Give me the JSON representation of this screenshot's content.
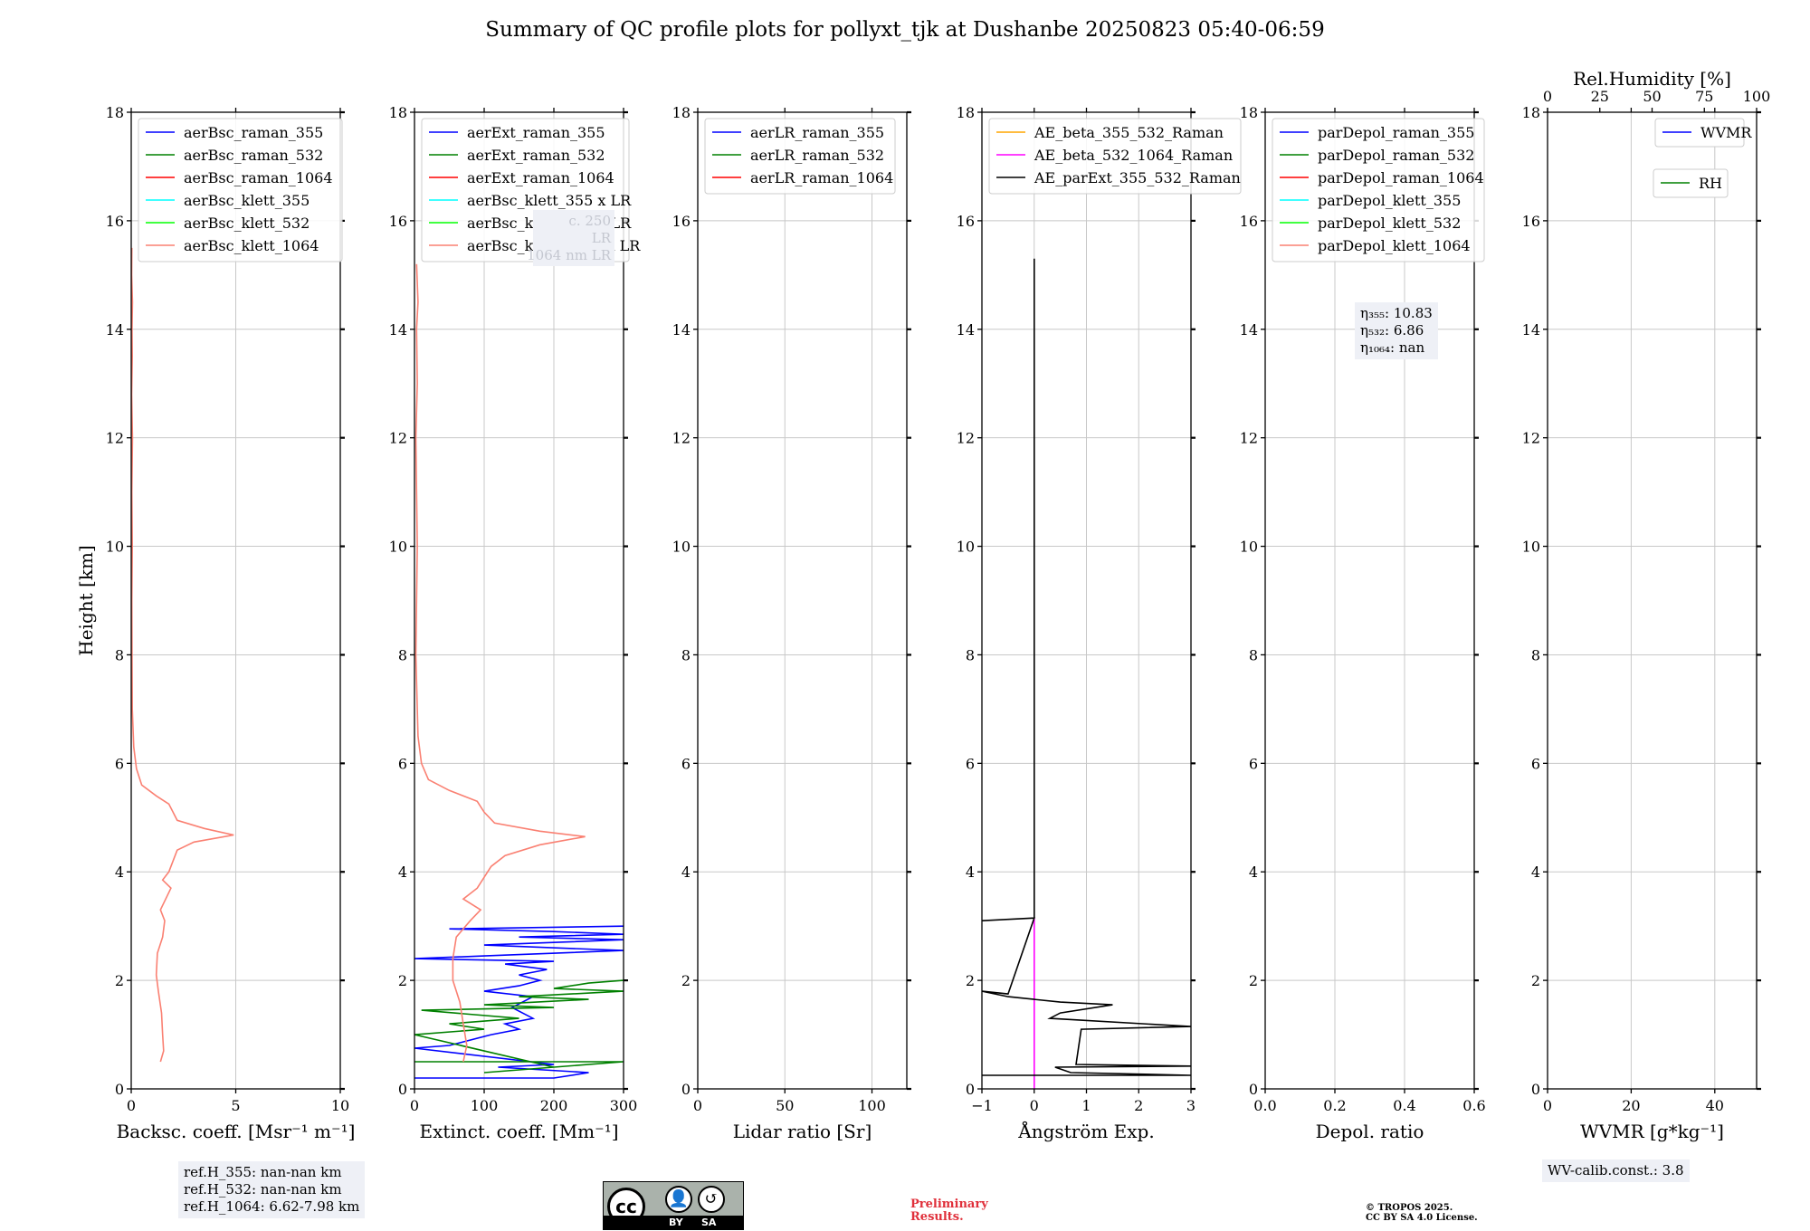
{
  "title": "Summary of QC profile plots for pollyxt_tjk at Dushanbe 20250823 05:40-06:59",
  "chart_data": [
    {
      "type": "line",
      "id": "bsc",
      "xlabel": "Backsc. coeff. [Msr⁻¹ m⁻¹]",
      "ylabel": "Height [km]",
      "xlim": [
        0,
        10
      ],
      "ylim": [
        0,
        18
      ],
      "xticks": [
        0,
        5,
        10
      ],
      "yticks": [
        0,
        2,
        4,
        6,
        8,
        10,
        12,
        14,
        16,
        18
      ],
      "grid": true,
      "legend_position": "top-left",
      "legend": [
        {
          "name": "aerBsc_raman_355",
          "color": "#0000ff"
        },
        {
          "name": "aerBsc_raman_532",
          "color": "#008000"
        },
        {
          "name": "aerBsc_raman_1064",
          "color": "#ff0000"
        },
        {
          "name": "aerBsc_klett_355",
          "color": "#00ffff"
        },
        {
          "name": "aerBsc_klett_532",
          "color": "#00ff00"
        },
        {
          "name": "aerBsc_klett_1064",
          "color": "#fa8072"
        }
      ],
      "series": [
        {
          "name": "aerBsc_klett_1064",
          "color": "#fa8072",
          "points": [
            [
              1.4,
              0.5
            ],
            [
              1.55,
              0.7
            ],
            [
              1.5,
              1.0
            ],
            [
              1.45,
              1.4
            ],
            [
              1.3,
              1.8
            ],
            [
              1.2,
              2.1
            ],
            [
              1.25,
              2.5
            ],
            [
              1.5,
              2.8
            ],
            [
              1.6,
              3.1
            ],
            [
              1.4,
              3.3
            ],
            [
              1.65,
              3.5
            ],
            [
              1.9,
              3.7
            ],
            [
              1.5,
              3.85
            ],
            [
              1.8,
              4.0
            ],
            [
              2.0,
              4.2
            ],
            [
              2.2,
              4.4
            ],
            [
              3.0,
              4.55
            ],
            [
              4.9,
              4.68
            ],
            [
              3.5,
              4.8
            ],
            [
              2.2,
              4.95
            ],
            [
              2.0,
              5.1
            ],
            [
              1.8,
              5.25
            ],
            [
              1.2,
              5.4
            ],
            [
              0.5,
              5.6
            ],
            [
              0.25,
              5.9
            ],
            [
              0.12,
              6.3
            ],
            [
              0.05,
              7.0
            ],
            [
              0.04,
              8.0
            ],
            [
              0.03,
              9.0
            ],
            [
              0.05,
              10.0
            ],
            [
              0.03,
              11.0
            ],
            [
              0.06,
              12.0
            ],
            [
              0.02,
              12.8
            ],
            [
              0.05,
              13.5
            ],
            [
              0.04,
              14.0
            ],
            [
              0.06,
              14.5
            ],
            [
              0.02,
              15.0
            ],
            [
              0.03,
              15.5
            ]
          ]
        }
      ]
    },
    {
      "type": "line",
      "id": "ext",
      "xlabel": "Extinct. coeff. [Mm⁻¹]",
      "ylabel": "",
      "xlim": [
        0,
        300
      ],
      "ylim": [
        0,
        18
      ],
      "xticks": [
        0,
        100,
        200,
        300
      ],
      "yticks": [
        0,
        2,
        4,
        6,
        8,
        10,
        12,
        14,
        16,
        18
      ],
      "grid": true,
      "legend_position": "top-left",
      "legend": [
        {
          "name": "aerExt_raman_355",
          "color": "#0000ff"
        },
        {
          "name": "aerExt_raman_532",
          "color": "#008000"
        },
        {
          "name": "aerExt_raman_1064",
          "color": "#ff0000"
        },
        {
          "name": "aerBsc_klett_355 x LR",
          "color": "#00ffff"
        },
        {
          "name": "aerBsc_klett_532 x LR",
          "color": "#00ff00"
        },
        {
          "name": "aerBsc_klett_1064 x LR",
          "color": "#fa8072"
        }
      ],
      "series": [
        {
          "name": "aerExt_raman_355",
          "color": "#0000ff",
          "points": [
            [
              0,
              0.2
            ],
            [
              200,
              0.2
            ],
            [
              250,
              0.3
            ],
            [
              120,
              0.4
            ],
            [
              200,
              0.45
            ],
            [
              0,
              0.75
            ],
            [
              50,
              0.8
            ],
            [
              110,
              1.0
            ],
            [
              150,
              1.1
            ],
            [
              130,
              1.2
            ],
            [
              170,
              1.3
            ],
            [
              140,
              1.5
            ],
            [
              170,
              1.7
            ],
            [
              100,
              1.8
            ],
            [
              150,
              1.9
            ],
            [
              180,
              2.0
            ],
            [
              150,
              2.1
            ],
            [
              190,
              2.2
            ],
            [
              130,
              2.3
            ],
            [
              200,
              2.35
            ],
            [
              0,
              2.4
            ],
            [
              100,
              2.45
            ],
            [
              300,
              2.55
            ],
            [
              100,
              2.65
            ],
            [
              200,
              2.7
            ],
            [
              300,
              2.75
            ],
            [
              150,
              2.8
            ],
            [
              300,
              2.85
            ],
            [
              200,
              2.9
            ],
            [
              50,
              2.95
            ],
            [
              300,
              3.0
            ]
          ]
        },
        {
          "name": "aerExt_raman_532",
          "color": "#008000",
          "points": [
            [
              0,
              0.5
            ],
            [
              300,
              0.5
            ],
            [
              100,
              0.3
            ],
            [
              200,
              0.4
            ],
            [
              0,
              1.0
            ],
            [
              100,
              1.1
            ],
            [
              50,
              1.2
            ],
            [
              150,
              1.3
            ],
            [
              10,
              1.45
            ],
            [
              200,
              1.5
            ],
            [
              100,
              1.55
            ],
            [
              250,
              1.65
            ],
            [
              150,
              1.7
            ],
            [
              300,
              1.8
            ],
            [
              200,
              1.85
            ],
            [
              250,
              1.95
            ],
            [
              300,
              2.0
            ]
          ]
        },
        {
          "name": "aerBsc_klett_1064 x LR",
          "color": "#fa8072",
          "points": [
            [
              70,
              0.5
            ],
            [
              75,
              0.8
            ],
            [
              70,
              1.2
            ],
            [
              65,
              1.6
            ],
            [
              55,
              2.0
            ],
            [
              55,
              2.4
            ],
            [
              60,
              2.8
            ],
            [
              80,
              3.1
            ],
            [
              95,
              3.3
            ],
            [
              70,
              3.5
            ],
            [
              90,
              3.7
            ],
            [
              100,
              3.9
            ],
            [
              110,
              4.1
            ],
            [
              130,
              4.3
            ],
            [
              180,
              4.5
            ],
            [
              245,
              4.65
            ],
            [
              180,
              4.75
            ],
            [
              115,
              4.9
            ],
            [
              100,
              5.1
            ],
            [
              90,
              5.3
            ],
            [
              50,
              5.5
            ],
            [
              20,
              5.7
            ],
            [
              10,
              6.0
            ],
            [
              5,
              6.5
            ],
            [
              2,
              8.0
            ],
            [
              4,
              10.0
            ],
            [
              2,
              12.0
            ],
            [
              4,
              13.0
            ],
            [
              3,
              14.0
            ],
            [
              5,
              14.5
            ],
            [
              3,
              15.2
            ]
          ]
        }
      ],
      "inset_text": [
        "c. 250",
        "     LR",
        "1064 nm LR"
      ]
    },
    {
      "type": "line",
      "id": "lr",
      "xlabel": "Lidar ratio [Sr]",
      "ylabel": "",
      "xlim": [
        0,
        120
      ],
      "ylim": [
        0,
        18
      ],
      "xticks": [
        0,
        50,
        100
      ],
      "yticks": [
        0,
        2,
        4,
        6,
        8,
        10,
        12,
        14,
        16,
        18
      ],
      "grid": true,
      "legend_position": "top-left",
      "legend": [
        {
          "name": "aerLR_raman_355",
          "color": "#0000ff"
        },
        {
          "name": "aerLR_raman_532",
          "color": "#008000"
        },
        {
          "name": "aerLR_raman_1064",
          "color": "#ff0000"
        }
      ],
      "series": []
    },
    {
      "type": "line",
      "id": "ae",
      "xlabel": "Ångström Exp.",
      "ylabel": "",
      "xlim": [
        -1,
        3
      ],
      "ylim": [
        0,
        18
      ],
      "xticks": [
        -1,
        0,
        1,
        2,
        3
      ],
      "yticks": [
        0,
        2,
        4,
        6,
        8,
        10,
        12,
        14,
        16,
        18
      ],
      "grid": true,
      "legend_position": "top-left",
      "legend": [
        {
          "name": "AE_beta_355_532_Raman",
          "color": "#ffa500"
        },
        {
          "name": "AE_beta_532_1064_Raman",
          "color": "#ff00ff"
        },
        {
          "name": "AE_parExt_355_532_Raman",
          "color": "#000000"
        }
      ],
      "series": [
        {
          "name": "AE_beta_532_1064_Raman",
          "color": "#ff00ff",
          "points": [
            [
              0,
              0.0
            ],
            [
              0,
              3.15
            ]
          ]
        },
        {
          "name": "AE_parExt_355_532_Raman",
          "color": "#000000",
          "points": [
            [
              -1,
              0.25
            ],
            [
              3,
              0.25
            ],
            [
              0.7,
              0.3
            ],
            [
              0.4,
              0.4
            ],
            [
              3,
              0.42
            ],
            [
              0.8,
              0.45
            ],
            [
              0.9,
              1.1
            ],
            [
              3,
              1.15
            ],
            [
              0.3,
              1.3
            ],
            [
              0.5,
              1.4
            ],
            [
              1.5,
              1.55
            ],
            [
              0.5,
              1.6
            ],
            [
              -0.5,
              1.7
            ],
            [
              -1,
              1.8
            ],
            [
              -0.5,
              1.75
            ],
            [
              0,
              3.15
            ],
            [
              -1,
              3.1
            ],
            [
              0,
              3.15
            ],
            [
              0,
              15.3
            ]
          ]
        }
      ]
    },
    {
      "type": "line",
      "id": "depol",
      "xlabel": "Depol. ratio",
      "ylabel": "",
      "xlim": [
        0,
        0.6
      ],
      "ylim": [
        0,
        18
      ],
      "xticks": [
        "0.0",
        "0.2",
        "0.4",
        "0.6"
      ],
      "yticks": [
        0,
        2,
        4,
        6,
        8,
        10,
        12,
        14,
        16,
        18
      ],
      "grid": true,
      "legend_position": "top-left",
      "legend": [
        {
          "name": "parDepol_raman_355",
          "color": "#0000ff"
        },
        {
          "name": "parDepol_raman_532",
          "color": "#008000"
        },
        {
          "name": "parDepol_raman_1064",
          "color": "#ff0000"
        },
        {
          "name": "parDepol_klett_355",
          "color": "#00ffff"
        },
        {
          "name": "parDepol_klett_532",
          "color": "#00ff00"
        },
        {
          "name": "parDepol_klett_1064",
          "color": "#fa8072"
        }
      ],
      "series": []
    },
    {
      "type": "line",
      "id": "wv",
      "xlabel": "WVMR [g*kg⁻¹]",
      "top_xlabel": "Rel.Humidity [%]",
      "ylabel": "",
      "xlim": [
        0,
        50
      ],
      "top_xlim": [
        0,
        100
      ],
      "top_xticks": [
        0,
        25,
        50,
        75,
        100
      ],
      "ylim": [
        0,
        18
      ],
      "xticks": [
        0,
        20,
        40
      ],
      "yticks": [
        0,
        2,
        4,
        6,
        8,
        10,
        12,
        14,
        16,
        18
      ],
      "grid": true,
      "legend_position": "top-right",
      "legend": [
        {
          "name": "WVMR",
          "color": "#0000ff"
        },
        {
          "name": "RH",
          "color": "#008000"
        }
      ],
      "series": []
    }
  ],
  "annotations": {
    "eta_lines": [
      "η₃₅₅: 10.83",
      "η₅₃₂: 6.86",
      "η₁₀₆₄: nan"
    ],
    "refH_lines": [
      "ref.H_355: nan-nan km",
      "ref.H_532: nan-nan km",
      "ref.H_1064: 6.62-7.98 km"
    ],
    "wv_calib": "WV-calib.const.: 3.8",
    "preliminary": [
      "Preliminary",
      "Results."
    ],
    "copyright": [
      "© TROPOS 2025.",
      "CC BY SA 4.0 License."
    ],
    "license_badge": {
      "by": "BY",
      "sa": "SA",
      "cc": "cc"
    }
  }
}
